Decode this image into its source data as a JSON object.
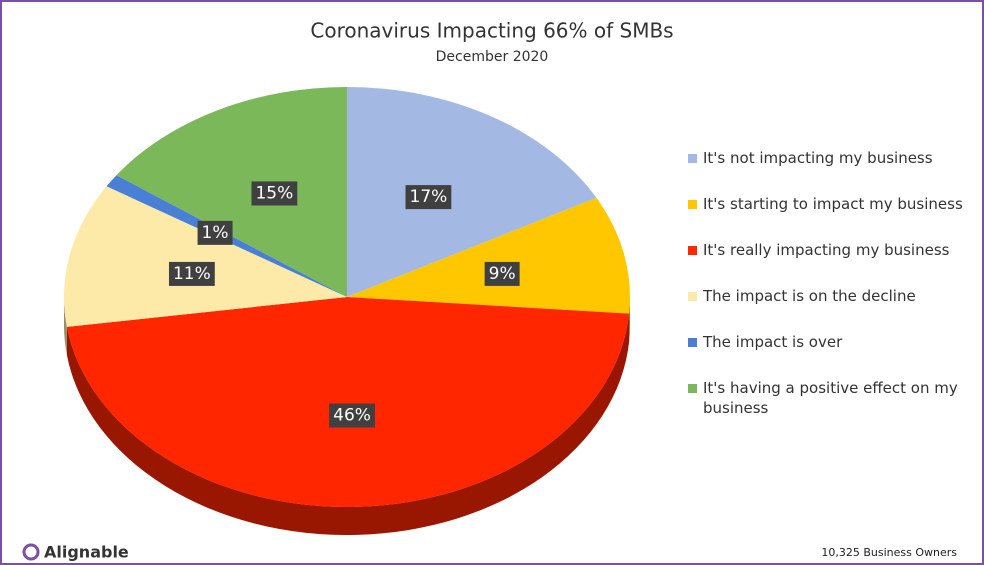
{
  "chart_data": {
    "type": "pie",
    "title": "Coronavirus Impacting 66% of SMBs",
    "subtitle": "December 2020",
    "categories": [
      "It's not impacting my business",
      "It's starting to impact my business",
      "It's really impacting my business",
      "The impact is on the decline",
      "The impact is over",
      "It's having a positive effect on my business"
    ],
    "values": [
      17,
      9,
      46,
      11,
      1,
      15
    ],
    "value_labels": [
      "17%",
      "9%",
      "46%",
      "11%",
      "1%",
      "15%"
    ],
    "colors": [
      "#a3b9e3",
      "#ffc700",
      "#ff2600",
      "#fde9a8",
      "#4a7fd6",
      "#7ab85a"
    ],
    "legend": "right",
    "logo": "Alignable",
    "note": "10,325 Business Owners"
  }
}
